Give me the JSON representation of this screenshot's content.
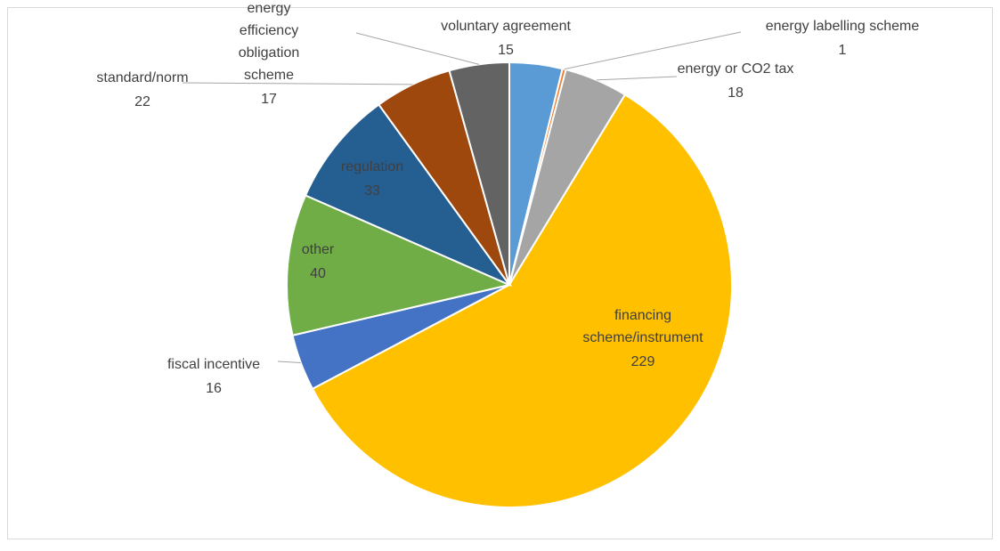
{
  "chart_data": {
    "type": "pie",
    "categories": [
      "voluntary agreement",
      "energy labelling scheme",
      "energy or CO2 tax",
      "financing scheme/instrument",
      "fiscal incentive",
      "other",
      "regulation",
      "standard/norm",
      "energy efficiency obligation scheme"
    ],
    "values": [
      15,
      1,
      18,
      229,
      16,
      40,
      33,
      22,
      17
    ],
    "colors": [
      "#5b9bd5",
      "#ed7d31",
      "#a5a5a5",
      "#ffc000",
      "#4472c4",
      "#70ad47",
      "#255e91",
      "#9e480e",
      "#636363"
    ]
  }
}
